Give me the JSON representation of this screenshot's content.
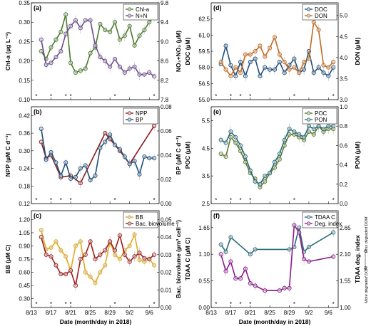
{
  "xaxis": {
    "label": "Date (month/day in 2018)",
    "range": [
      5,
      41
    ],
    "ticks": [
      {
        "x": 5,
        "label": "8/13"
      },
      {
        "x": 9,
        "label": "8/17"
      },
      {
        "x": 13,
        "label": "8/21"
      },
      {
        "x": 17,
        "label": "8/25"
      },
      {
        "x": 21,
        "label": "8/29"
      },
      {
        "x": 25,
        "label": "9/2"
      },
      {
        "x": 29,
        "label": "9/6"
      }
    ]
  },
  "annotations": {
    "f_right_top": "Less degraded DOM",
    "f_right_bottom": "More degraded DOM"
  },
  "chart_data": [
    {
      "id": "a",
      "panel_label": "(a)",
      "type": "line",
      "x_range": [
        5,
        31
      ],
      "y_left": {
        "label": "Chl-a (µg L⁻¹)",
        "range": [
          0.1,
          0.35
        ],
        "ticks": [
          0.1,
          0.15,
          0.2,
          0.25,
          0.3,
          0.35
        ],
        "tick_labels": [
          "0.10",
          "0.15",
          "0.20",
          "0.25",
          "0.30",
          "0.35"
        ]
      },
      "y_right": {
        "label": "NO₃+NO₂ (µM)",
        "range": [
          7.8,
          9.8
        ],
        "ticks": [
          7.8,
          8.2,
          8.6,
          9.0,
          9.4,
          9.8
        ],
        "tick_labels": [
          "7.8",
          "8.2",
          "8.6",
          "9.0",
          "9.4",
          "9.8"
        ]
      },
      "legend": {
        "position": "top-right",
        "entries": [
          "Chl-a",
          "N+N"
        ]
      },
      "series": [
        {
          "name": "Chl-a",
          "axis": "left",
          "color": "#4a7a2c",
          "x": [
            7,
            8,
            9,
            10,
            11,
            12,
            13,
            14,
            15,
            16,
            17,
            18,
            19,
            20,
            21,
            22,
            23,
            24,
            25,
            26,
            27,
            28,
            29,
            30
          ],
          "y": [
            0.225,
            0.205,
            0.235,
            0.255,
            0.275,
            0.32,
            0.195,
            0.17,
            0.175,
            0.18,
            0.22,
            0.235,
            0.295,
            0.28,
            0.275,
            0.3,
            0.255,
            0.265,
            0.29,
            0.24,
            0.265,
            0.28,
            0.3,
            0.315
          ]
        },
        {
          "name": "N+N",
          "axis": "left",
          "color": "#6a4c8c",
          "x": [
            7,
            8,
            9,
            10,
            11,
            12,
            13,
            14,
            15,
            16,
            17,
            18,
            19,
            20,
            21,
            22,
            23,
            24,
            25,
            26,
            27,
            28,
            29,
            30
          ],
          "y": [
            0.255,
            0.19,
            0.195,
            0.21,
            0.225,
            0.27,
            0.29,
            0.305,
            0.285,
            0.305,
            0.305,
            0.24,
            0.21,
            0.2,
            0.185,
            0.205,
            0.185,
            0.17,
            0.18,
            0.185,
            0.165,
            0.165,
            0.17,
            0.16
          ]
        }
      ],
      "stars": [
        6,
        9,
        12,
        13,
        22,
        30
      ]
    },
    {
      "id": "b",
      "panel_label": "(b)",
      "type": "line",
      "x_range": [
        5,
        31
      ],
      "y_left": {
        "label": "NPP (µM C d⁻¹)",
        "range": [
          0.12,
          0.45
        ],
        "ticks": [
          0.12,
          0.18,
          0.24,
          0.3,
          0.36,
          0.42
        ],
        "tick_labels": [
          "0.12",
          "0.18",
          "0.24",
          "0.30",
          "0.36",
          "0.42"
        ]
      },
      "y_right": {
        "label": "BP (µM C d⁻¹)",
        "range": [
          0.0,
          0.08
        ],
        "ticks": [
          0.0,
          0.02,
          0.04,
          0.06,
          0.08
        ],
        "tick_labels": [
          "0.00",
          "0.02",
          "0.04",
          "0.06",
          "0.08"
        ]
      },
      "legend": {
        "position": "top-right",
        "entries": [
          "NPP",
          "BP"
        ]
      },
      "series": [
        {
          "name": "NPP",
          "axis": "left",
          "color": "#8b1a1a",
          "x": [
            7,
            8,
            9,
            11,
            13,
            15,
            20,
            21,
            23,
            25,
            30
          ],
          "y": [
            0.33,
            0.275,
            0.285,
            0.21,
            0.215,
            0.19,
            0.36,
            0.34,
            0.3,
            0.255,
            0.385
          ]
        },
        {
          "name": "BP",
          "axis": "left",
          "color": "#1f4e79",
          "x": [
            7,
            8,
            9,
            10,
            11,
            12,
            13,
            14,
            15,
            16,
            17,
            18,
            19,
            20,
            21,
            22,
            23,
            24,
            25,
            26,
            27,
            28,
            29,
            30
          ],
          "y": [
            0.375,
            0.27,
            0.295,
            0.26,
            0.215,
            0.26,
            0.205,
            0.21,
            0.24,
            0.25,
            0.2,
            0.215,
            0.31,
            0.33,
            0.355,
            0.32,
            0.305,
            0.28,
            0.255,
            0.265,
            0.22,
            0.28,
            0.275,
            0.275
          ]
        }
      ],
      "stars": [
        6,
        9,
        11,
        13,
        22,
        30
      ]
    },
    {
      "id": "c",
      "panel_label": "(c)",
      "type": "line",
      "x_range": [
        5,
        31
      ],
      "y_left": {
        "label": "BB (µM C)",
        "range": [
          0.2,
          1.3
        ],
        "ticks": [
          0.3,
          0.45,
          0.6,
          0.75,
          0.9,
          1.05,
          1.2
        ],
        "tick_labels": [
          "0.30",
          "0.45",
          "0.60",
          "0.75",
          "0.90",
          "1.05",
          "1.20"
        ]
      },
      "y_right": {
        "label": "Bac. biovolume (µm³ cell⁻¹)",
        "range": [
          0.0,
          0.055
        ],
        "ticks": [
          0.0,
          0.01,
          0.02,
          0.03,
          0.04,
          0.05
        ],
        "tick_labels": [
          "0.00",
          "0.01",
          "0.02",
          "0.03",
          "0.04",
          "0.05"
        ]
      },
      "legend": {
        "position": "top-right",
        "entries": [
          "BB",
          "Bac. biovolume"
        ]
      },
      "series": [
        {
          "name": "BB",
          "axis": "left",
          "color": "#e0a81e",
          "x": [
            7,
            8,
            9,
            10,
            11,
            12,
            13,
            14,
            15,
            16,
            17,
            18,
            19,
            20,
            21,
            22,
            23,
            24,
            25,
            26,
            27,
            28,
            29,
            30
          ],
          "y": [
            1.08,
            0.86,
            0.88,
            0.95,
            0.85,
            0.78,
            0.62,
            0.9,
            0.95,
            0.6,
            0.55,
            0.48,
            0.6,
            0.68,
            0.95,
            0.8,
            0.75,
            0.85,
            0.9,
            1.03,
            0.74,
            0.72,
            0.75,
            0.68
          ]
        },
        {
          "name": "Bac. biovolume",
          "axis": "left",
          "color": "#9b1c1c",
          "x": [
            7,
            8,
            9,
            10,
            11,
            12,
            13,
            14,
            15,
            16,
            17,
            18,
            19,
            20,
            21,
            22,
            23,
            24,
            25,
            26,
            27,
            28,
            29,
            30
          ],
          "y": [
            1.0,
            0.8,
            0.78,
            0.68,
            0.58,
            0.58,
            0.62,
            0.45,
            0.75,
            0.8,
            0.95,
            0.75,
            0.8,
            0.85,
            0.95,
            0.85,
            1.02,
            0.8,
            0.72,
            0.78,
            0.82,
            0.76,
            0.75,
            0.8
          ]
        }
      ],
      "stars": [
        6,
        9,
        12,
        13,
        22,
        30
      ]
    },
    {
      "id": "d",
      "panel_label": "(d)",
      "type": "line",
      "x_range": [
        5,
        31
      ],
      "y_left": {
        "label": "DOC (µM)",
        "range": [
          55,
          64
        ],
        "ticks": [
          55,
          56.5,
          58,
          59.5,
          61,
          62.5
        ],
        "tick_labels": [
          "55.0",
          "56.5",
          "58.0",
          "59.5",
          "61.0",
          "62.5"
        ]
      },
      "y_right": {
        "label": "DON (µM)",
        "range": [
          3.0,
          5.3
        ],
        "ticks": [
          3.0,
          3.5,
          4.0,
          4.5,
          5.0
        ],
        "tick_labels": [
          "3.0",
          "3.5",
          "4.0",
          "4.5",
          "5.0"
        ]
      },
      "legend": {
        "position": "top-right",
        "entries": [
          "DOC",
          "DON"
        ]
      },
      "series": [
        {
          "name": "DOC",
          "axis": "left",
          "color": "#1f4e79",
          "x": [
            7,
            8,
            9,
            10,
            11,
            12,
            13,
            14,
            15,
            16,
            17,
            18,
            19,
            20,
            21,
            22,
            23,
            24,
            25,
            26,
            27,
            28,
            29,
            30
          ],
          "y": [
            58.3,
            60.0,
            58.2,
            57.2,
            58.5,
            57.2,
            58.5,
            58.8,
            57.2,
            58.0,
            57.8,
            57.8,
            58.5,
            57.5,
            58.2,
            58.8,
            57.5,
            57.8,
            59.5,
            57.5,
            58.0,
            57.5,
            57.2,
            58.0
          ]
        },
        {
          "name": "DON",
          "axis": "left",
          "color": "#c26a1e",
          "x": [
            7,
            8,
            9,
            10,
            11,
            12,
            13,
            14,
            15,
            16,
            17,
            18,
            19,
            20,
            21,
            22,
            23,
            24,
            25,
            26,
            27,
            28,
            29,
            30
          ],
          "y": [
            58.5,
            57.8,
            57.2,
            58.0,
            57.5,
            59.2,
            59.2,
            59.5,
            60.0,
            59.0,
            59.8,
            60.8,
            59.2,
            58.5,
            57.8,
            58.0,
            57.5,
            58.5,
            58.8,
            62.2,
            61.5,
            58.2,
            58.0,
            58.5
          ]
        }
      ],
      "stars": [
        6,
        9,
        11,
        13,
        22,
        30
      ]
    },
    {
      "id": "e",
      "panel_label": "(e)",
      "type": "line",
      "x_range": [
        5,
        31
      ],
      "y_left": {
        "label": "POC (µM)",
        "range": [
          2.5,
          6.0
        ],
        "ticks": [
          2.5,
          3.5,
          4.5,
          5.5
        ],
        "tick_labels": [
          "2.5",
          "3.5",
          "4.5",
          "5.5"
        ]
      },
      "y_right": {
        "label": "PON (µM)",
        "range": [
          0.0,
          1.0
        ],
        "ticks": [
          0.0,
          0.2,
          0.4,
          0.6,
          0.8,
          1.0
        ],
        "tick_labels": [
          "0.0",
          "0.2",
          "0.4",
          "0.6",
          "0.8",
          "1.0"
        ]
      },
      "legend": {
        "position": "top-right",
        "entries": [
          "POC",
          "PON"
        ]
      },
      "series": [
        {
          "name": "POC",
          "axis": "left",
          "color": "#5a7a2c",
          "x": [
            7,
            8,
            9,
            10,
            11,
            12,
            13,
            14,
            15,
            16,
            17,
            18,
            19,
            20,
            21,
            22,
            23,
            24,
            25,
            26,
            27,
            28,
            29,
            30
          ],
          "y": [
            4.3,
            4.2,
            4.9,
            4.7,
            4.4,
            4.0,
            3.6,
            3.4,
            3.1,
            3.3,
            3.6,
            3.8,
            4.1,
            4.6,
            5.0,
            5.0,
            4.9,
            4.8,
            5.1,
            5.0,
            5.3,
            5.1,
            5.2,
            5.2
          ]
        },
        {
          "name": "PON",
          "axis": "left",
          "color": "#2a6a7a",
          "x": [
            7,
            8,
            9,
            10,
            11,
            12,
            13,
            14,
            15,
            16,
            17,
            18,
            19,
            20,
            21,
            22,
            23,
            24,
            25,
            26,
            27,
            28,
            29,
            30
          ],
          "y": [
            4.8,
            4.7,
            5.1,
            4.9,
            4.6,
            4.2,
            3.7,
            3.3,
            3.2,
            3.5,
            3.6,
            4.0,
            4.3,
            4.8,
            5.2,
            5.1,
            5.0,
            4.9,
            5.3,
            5.2,
            5.3,
            5.2,
            5.3,
            5.3
          ]
        }
      ],
      "stars": [
        6,
        9,
        11,
        13,
        22,
        30
      ]
    },
    {
      "id": "f",
      "panel_label": "(f)",
      "type": "line",
      "x_range": [
        5,
        31
      ],
      "y_left": {
        "label": "TDAA C (µM C)",
        "range": [
          0.0,
          2.0
        ],
        "ticks": [
          0.0,
          0.55,
          1.1,
          1.65
        ],
        "tick_labels": [
          "0.00",
          "0.55",
          "1.10",
          "1.65"
        ]
      },
      "y_right": {
        "label": "TDAA deg. index",
        "range": [
          1.0,
          3.0
        ],
        "ticks": [
          1.0,
          1.55,
          2.1,
          2.65
        ],
        "tick_labels": [
          "1.00",
          "1.55",
          "2.10",
          "2.65"
        ]
      },
      "legend": {
        "position": "top-right",
        "entries": [
          "TDAA C",
          "Deg. index"
        ]
      },
      "series": [
        {
          "name": "TDAA C",
          "axis": "left",
          "color": "#2a6a7a",
          "x": [
            7,
            8,
            9,
            13,
            14,
            21,
            22,
            23,
            24,
            25,
            30
          ],
          "y": [
            1.3,
            1.15,
            1.45,
            1.1,
            1.2,
            1.2,
            1.25,
            1.65,
            1.15,
            1.25,
            1.55
          ]
        },
        {
          "name": "Deg. index",
          "axis": "left",
          "color": "#8b1a8b",
          "x": [
            7,
            8,
            9,
            10,
            11,
            12,
            13,
            14,
            16,
            19,
            20,
            21,
            22,
            23,
            24,
            25,
            30
          ],
          "y": [
            1.1,
            0.75,
            0.95,
            0.6,
            0.6,
            0.8,
            0.5,
            0.45,
            0.35,
            0.35,
            0.4,
            0.4,
            1.7,
            1.55,
            1.0,
            0.95,
            1.05
          ]
        }
      ],
      "stars": [
        6,
        9,
        11,
        13,
        22,
        30
      ]
    }
  ]
}
